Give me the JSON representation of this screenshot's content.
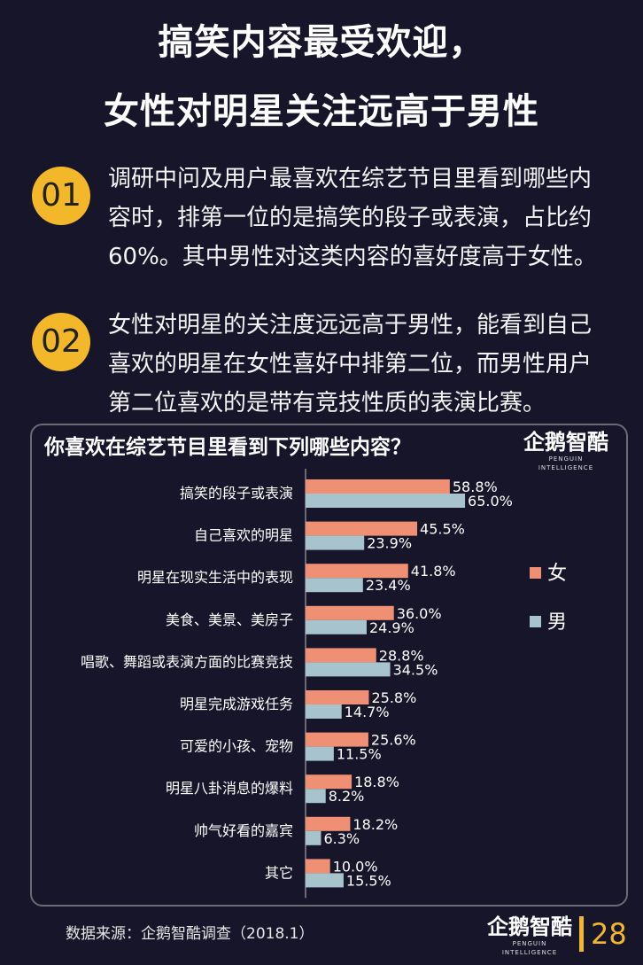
{
  "header": {
    "title_line1": "搞笑内容最受欢迎，",
    "title_line2": "女性对明星关注远高于男性"
  },
  "points": [
    {
      "num": "01",
      "text": "调研中问及用户最喜欢在综艺节目里看到哪些内容时，排第一位的是搞笑的段子或表演，占比约60%。其中男性对这类内容的喜好度高于女性。"
    },
    {
      "num": "02",
      "text": "女性对明星的关注度远远高于男性，能看到自己喜欢的明星在女性喜好中排第二位，而男性用户第二位喜欢的是带有竞技性质的表演比赛。"
    }
  ],
  "logo": {
    "cn": "企鹅智酷",
    "en": "PENGUIN INTELLIGENCE"
  },
  "colors": {
    "female": "#ef8f74",
    "male": "#a7c3cb",
    "accent": "#f2b829",
    "background": "#17152a"
  },
  "chart_data": {
    "type": "bar",
    "orientation": "horizontal",
    "title": "你喜欢在综艺节目里看到下列哪些内容？",
    "categories": [
      "搞笑的段子或表演",
      "自己喜欢的明星",
      "明星在现实生活中的表现",
      "美食、美景、美房子",
      "唱歌、舞蹈或表演方面的比赛竞技",
      "明星完成游戏任务",
      "可爱的小孩、宠物",
      "明星八卦消息的爆料",
      "帅气好看的嘉宾",
      "其它"
    ],
    "series": [
      {
        "name": "女",
        "values": [
          58.8,
          45.5,
          41.8,
          36.0,
          28.8,
          25.8,
          25.6,
          18.8,
          18.2,
          10.0
        ],
        "labels": [
          "58.8%",
          "45.5%",
          "41.8%",
          "36.0%",
          "28.8%",
          "25.8%",
          "25.6%",
          "18.8%",
          "18.2%",
          "10.0%"
        ]
      },
      {
        "name": "男",
        "values": [
          65.0,
          23.9,
          23.4,
          24.9,
          34.5,
          14.7,
          11.5,
          8.2,
          6.3,
          15.5
        ],
        "labels": [
          "65.0%",
          "23.9%",
          "23.4%",
          "24.9%",
          "34.5%",
          "14.7%",
          "11.5%",
          "8.2%",
          "6.3%",
          "15.5%"
        ]
      }
    ],
    "xlim": [
      0,
      100
    ],
    "legend_position": "right",
    "grid": false
  },
  "footer": {
    "source": "数据来源：企鹅智酷调查（2018.1）",
    "page": "28"
  }
}
